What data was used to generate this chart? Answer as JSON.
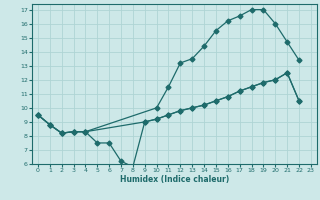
{
  "xlabel": "Humidex (Indice chaleur)",
  "bg_color": "#cde8e8",
  "line_color": "#1e6b6b",
  "grid_color": "#afd4d4",
  "xlim": [
    -0.5,
    23.5
  ],
  "ylim": [
    6,
    17.4
  ],
  "xtick_labels": [
    "0",
    "1",
    "2",
    "3",
    "4",
    "5",
    "6",
    "7",
    "8",
    "9",
    "10",
    "11",
    "12",
    "13",
    "14",
    "15",
    "16",
    "17",
    "18",
    "19",
    "20",
    "21",
    "22",
    "23"
  ],
  "ytick_labels": [
    "6",
    "7",
    "8",
    "9",
    "10",
    "11",
    "12",
    "13",
    "14",
    "15",
    "16",
    "17"
  ],
  "line1_x": [
    0,
    1,
    2,
    3,
    4,
    10,
    11,
    12,
    13,
    14,
    15,
    16,
    17,
    18,
    19,
    20,
    21,
    22
  ],
  "line1_y": [
    9.5,
    8.8,
    8.2,
    8.3,
    8.3,
    10.0,
    11.5,
    13.2,
    13.5,
    14.4,
    15.5,
    16.2,
    16.55,
    17.0,
    17.0,
    16.0,
    14.7,
    13.4
  ],
  "line2_x": [
    0,
    1,
    2,
    3,
    4,
    9,
    10,
    11,
    12,
    13,
    14,
    15,
    16,
    17,
    18,
    19,
    20,
    21,
    22
  ],
  "line2_y": [
    9.5,
    8.8,
    8.2,
    8.3,
    8.3,
    9.0,
    9.2,
    9.5,
    9.8,
    10.0,
    10.2,
    10.5,
    10.8,
    11.2,
    11.5,
    11.8,
    12.0,
    12.5,
    10.5
  ],
  "line3_x": [
    0,
    1,
    2,
    3,
    4,
    5,
    6,
    7,
    8,
    9,
    10,
    11,
    12,
    13,
    14,
    15,
    16,
    17,
    18,
    19,
    20,
    21,
    22
  ],
  "line3_y": [
    9.5,
    8.8,
    8.2,
    8.3,
    8.3,
    7.5,
    7.5,
    6.2,
    5.8,
    9.0,
    9.2,
    9.5,
    9.8,
    10.0,
    10.2,
    10.5,
    10.8,
    11.2,
    11.5,
    11.8,
    12.0,
    12.5,
    10.5
  ]
}
